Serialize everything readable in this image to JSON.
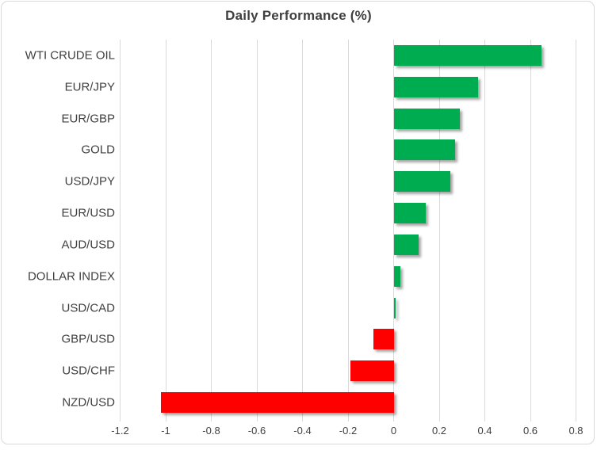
{
  "chart_data": {
    "type": "bar",
    "orientation": "horizontal",
    "title": "Daily Performance (%)",
    "categories": [
      "WTI CRUDE OIL",
      "EUR/JPY",
      "EUR/GBP",
      "GOLD",
      "USD/JPY",
      "EUR/USD",
      "AUD/USD",
      "DOLLAR INDEX",
      "USD/CAD",
      "GBP/USD",
      "USD/CHF",
      "NZD/USD"
    ],
    "values": [
      0.65,
      0.37,
      0.29,
      0.27,
      0.25,
      0.14,
      0.11,
      0.03,
      0.01,
      -0.09,
      -0.19,
      -1.02
    ],
    "xlabel": "",
    "ylabel": "",
    "xlim": [
      -1.2,
      0.8
    ],
    "x_ticks": [
      -1.2,
      -1,
      -0.8,
      -0.6,
      -0.4,
      -0.2,
      0,
      0.2,
      0.4,
      0.6,
      0.8
    ],
    "x_tick_labels": [
      "-1.2",
      "-1",
      "-0.8",
      "-0.6",
      "-0.4",
      "-0.2",
      "0",
      "0.2",
      "0.4",
      "0.6",
      "0.8"
    ],
    "grid": true,
    "legend": false,
    "colors": {
      "positive": "#00AC50",
      "negative": "#FF0000",
      "gridline": "#D9D9D9",
      "title_text": "#404040",
      "axis_text": "#404040",
      "frame_border": "#D9D9D9",
      "background": "#FFFFFF"
    }
  }
}
